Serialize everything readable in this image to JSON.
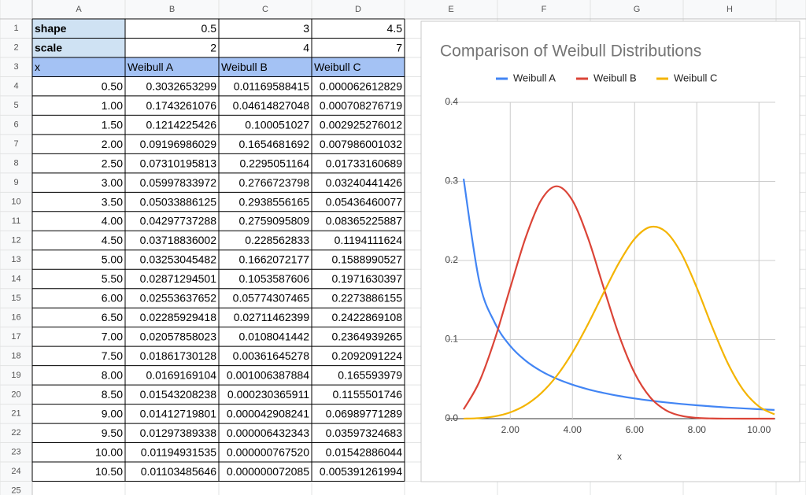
{
  "sheet": {
    "columns": [
      "A",
      "B",
      "C",
      "D",
      "E",
      "F",
      "G",
      "H"
    ],
    "row_numbers": [
      1,
      2,
      3,
      4,
      5,
      6,
      7,
      8,
      9,
      10,
      11,
      12,
      13,
      14,
      15,
      16,
      17,
      18,
      19,
      20,
      21,
      22,
      23,
      24,
      25
    ]
  },
  "table": {
    "rows": [
      [
        "shape",
        "0.5",
        "3",
        "4.5"
      ],
      [
        "scale",
        "2",
        "4",
        "7"
      ],
      [
        "x",
        "Weibull A",
        "Weibull B",
        "Weibull C"
      ],
      [
        "0.50",
        "0.3032653299",
        "0.01169588415",
        "0.000062612829"
      ],
      [
        "1.00",
        "0.1743261076",
        "0.04614827048",
        "0.000708276719"
      ],
      [
        "1.50",
        "0.1214225426",
        "0.100051027",
        "0.002925276012"
      ],
      [
        "2.00",
        "0.09196986029",
        "0.1654681692",
        "0.007986001032"
      ],
      [
        "2.50",
        "0.07310195813",
        "0.2295051164",
        "0.01733160689"
      ],
      [
        "3.00",
        "0.05997833972",
        "0.2766723798",
        "0.03240441426"
      ],
      [
        "3.50",
        "0.05033886125",
        "0.2938556165",
        "0.05436460077"
      ],
      [
        "4.00",
        "0.04297737288",
        "0.2759095809",
        "0.08365225887"
      ],
      [
        "4.50",
        "0.03718836002",
        "0.228562833",
        "0.1194111624"
      ],
      [
        "5.00",
        "0.03253045482",
        "0.1662072177",
        "0.1588990527"
      ],
      [
        "5.50",
        "0.02871294501",
        "0.1053587606",
        "0.1971630397"
      ],
      [
        "6.00",
        "0.02553637652",
        "0.05774307465",
        "0.2273886155"
      ],
      [
        "6.50",
        "0.02285929418",
        "0.02711462399",
        "0.2422869108"
      ],
      [
        "7.00",
        "0.02057858023",
        "0.0108041442",
        "0.2364939265"
      ],
      [
        "7.50",
        "0.01861730128",
        "0.00361645278",
        "0.2092091224"
      ],
      [
        "8.00",
        "0.0169169104",
        "0.001006387884",
        "0.165593979"
      ],
      [
        "8.50",
        "0.01543208238",
        "0.000230365911",
        "0.1155501746"
      ],
      [
        "9.00",
        "0.01412719801",
        "0.000042908241",
        "0.06989771289"
      ],
      [
        "9.50",
        "0.01297389338",
        "0.000006432343",
        "0.03597324683"
      ],
      [
        "10.00",
        "0.01194931535",
        "0.000000767520",
        "0.01542886044"
      ],
      [
        "10.50",
        "0.01103485646",
        "0.000000072085",
        "0.005391261994"
      ]
    ]
  },
  "chart_data": {
    "type": "line",
    "title": "Comparison of Weibull Distributions",
    "x_label": "x",
    "x": [
      0.5,
      1,
      1.5,
      2,
      2.5,
      3,
      3.5,
      4,
      4.5,
      5,
      5.5,
      6,
      6.5,
      7,
      7.5,
      8,
      8.5,
      9,
      9.5,
      10,
      10.5
    ],
    "series": [
      {
        "name": "Weibull A",
        "color": "#4285f4",
        "values": [
          0.3032653299,
          0.1743261076,
          0.1214225426,
          0.09196986029,
          0.07310195813,
          0.05997833972,
          0.05033886125,
          0.04297737288,
          0.03718836002,
          0.03253045482,
          0.02871294501,
          0.02553637652,
          0.02285929418,
          0.02057858023,
          0.01861730128,
          0.0169169104,
          0.01543208238,
          0.01412719801,
          0.01297389338,
          0.01194931535,
          0.01103485646
        ]
      },
      {
        "name": "Weibull B",
        "color": "#db4437",
        "values": [
          0.01169588415,
          0.04614827048,
          0.100051027,
          0.1654681692,
          0.2295051164,
          0.2766723798,
          0.2938556165,
          0.2759095809,
          0.228562833,
          0.1662072177,
          0.1053587606,
          0.05774307465,
          0.02711462399,
          0.0108041442,
          0.00361645278,
          0.001006387884,
          0.000230365911,
          4.2908241e-05,
          6.432343e-06,
          7.6752e-07,
          7.2085e-08
        ]
      },
      {
        "name": "Weibull C",
        "color": "#f4b400",
        "values": [
          6.2612829e-05,
          0.000708276719,
          0.002925276012,
          0.007986001032,
          0.01733160689,
          0.03240441426,
          0.05436460077,
          0.08365225887,
          0.1194111624,
          0.1588990527,
          0.1971630397,
          0.2273886155,
          0.2422869108,
          0.2364939265,
          0.2092091224,
          0.165593979,
          0.1155501746,
          0.06989771289,
          0.03597324683,
          0.01542886044,
          0.005391261994
        ]
      }
    ],
    "xlim": [
      0.5,
      10.5
    ],
    "xticks": [
      {
        "value": 2,
        "label": "2.00"
      },
      {
        "value": 4,
        "label": "4.00"
      },
      {
        "value": 6,
        "label": "6.00"
      },
      {
        "value": 8,
        "label": "8.00"
      },
      {
        "value": 10,
        "label": "10.00"
      }
    ],
    "ylim": [
      0,
      0.4
    ],
    "yticks": [
      {
        "value": 0,
        "label": "0.0"
      },
      0.1,
      0.2,
      0.3,
      0.4
    ],
    "grid": true,
    "legend": "top"
  }
}
